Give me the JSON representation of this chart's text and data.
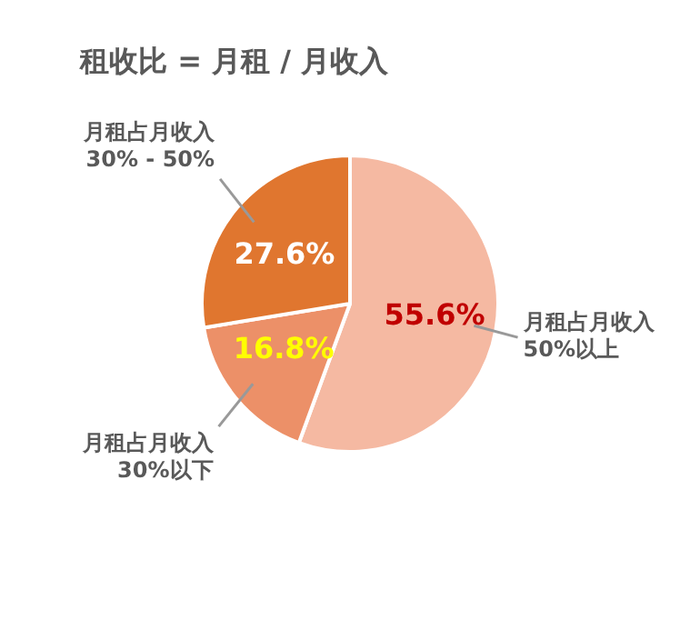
{
  "chart_data": {
    "type": "pie",
    "title": "租收比 = 月租 / 月收入",
    "categories": [
      "月租占月收入\n50%以上",
      "月租占月收入\n30%以下",
      "月租占月收入\n30% - 50%"
    ],
    "values": [
      55.6,
      16.8,
      27.6
    ],
    "colors": [
      "#f5b9a2",
      "#ec9068",
      "#e0762f"
    ],
    "value_labels": [
      "55.6%",
      "16.8%",
      "27.6%"
    ],
    "legend": false
  }
}
